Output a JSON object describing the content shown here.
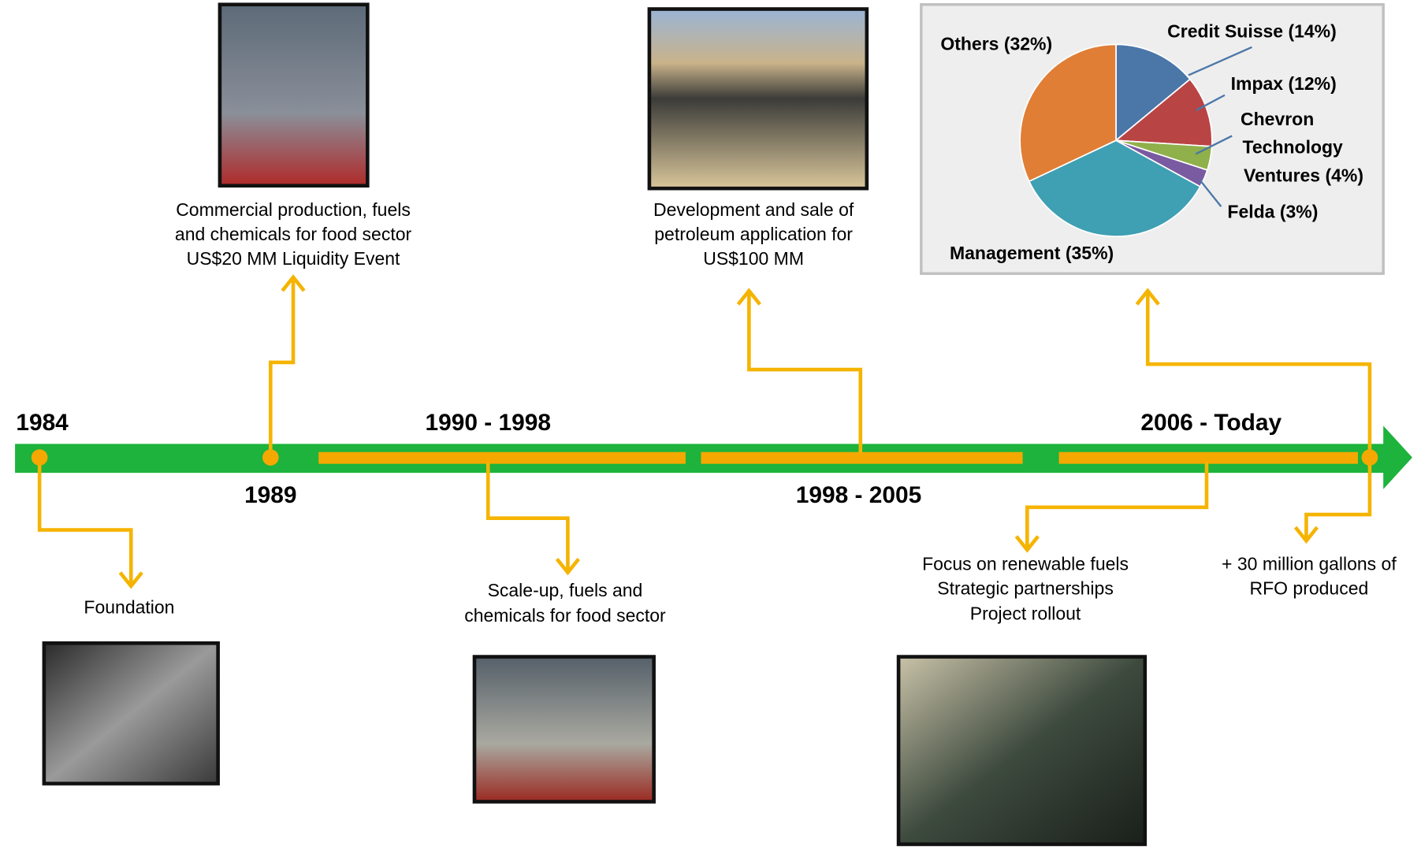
{
  "timeline": {
    "periods": [
      "1984",
      "1989",
      "1990 - 1998",
      "1998 - 2005",
      "2006 - Today"
    ],
    "events": [
      {
        "lines": [
          "Foundation"
        ]
      },
      {
        "lines": [
          "Commercial production, fuels",
          "and chemicals for food sector",
          "US$20 MM  Liquidity Event"
        ]
      },
      {
        "lines": [
          "Scale-up, fuels and",
          "chemicals for food sector"
        ]
      },
      {
        "lines": [
          "Development and sale of",
          "petroleum application for",
          "US$100 MM"
        ]
      },
      {
        "lines": [
          "Focus on renewable fuels",
          "Strategic partnerships",
          "Project rollout"
        ]
      },
      {
        "lines": [
          "+ 30 million gallons of",
          "RFO produced"
        ]
      }
    ]
  },
  "pie": {
    "type": "pie",
    "slices": [
      {
        "label": [
          "Credit Suisse (14%)"
        ],
        "value": 14,
        "color": "#4a76a8"
      },
      {
        "label": [
          "Impax (12%)"
        ],
        "value": 12,
        "color": "#b94444"
      },
      {
        "label": [
          "Chevron",
          "Technology",
          "Ventures (4%)"
        ],
        "value": 4,
        "color": "#8fb04a"
      },
      {
        "label": [
          "Felda (3%)"
        ],
        "value": 3,
        "color": "#7a5aa0"
      },
      {
        "label": [
          "Management (35%)"
        ],
        "value": 35,
        "color": "#3f9fb3"
      },
      {
        "label": [
          "Others (32%)"
        ],
        "value": 32,
        "color": "#e07e36"
      }
    ]
  }
}
